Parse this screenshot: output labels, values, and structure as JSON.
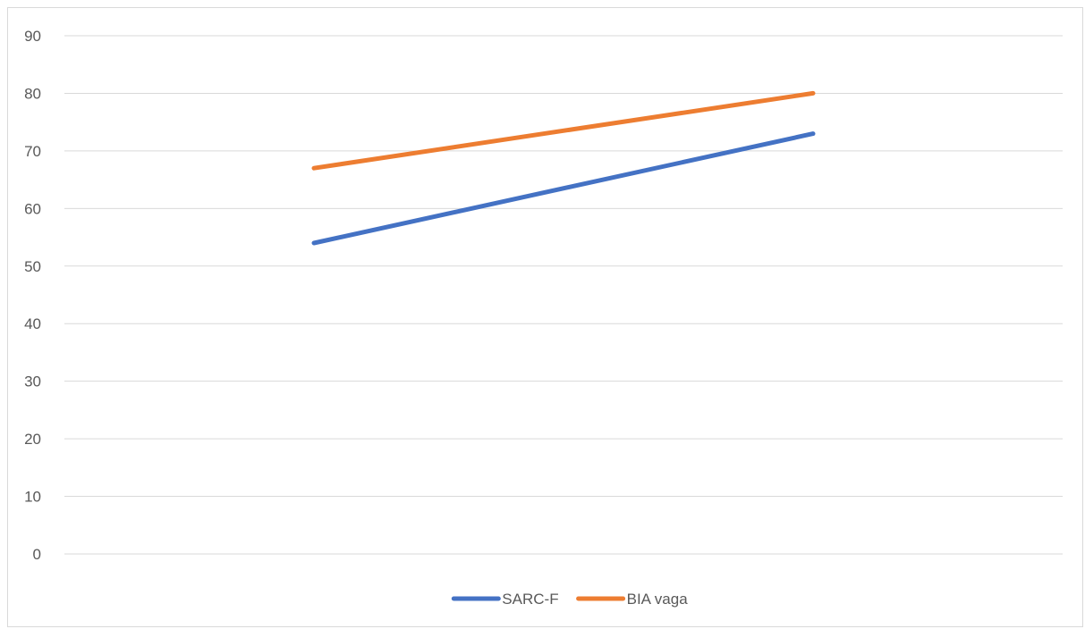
{
  "chart_data": {
    "type": "line",
    "title": "",
    "xlabel": "",
    "ylabel": "",
    "categories": [
      "",
      ""
    ],
    "ylim": [
      0,
      90
    ],
    "yticks": [
      0,
      10,
      20,
      30,
      40,
      50,
      60,
      70,
      80,
      90
    ],
    "grid": true,
    "legend_position": "bottom",
    "series": [
      {
        "name": "SARC-F",
        "values": [
          54,
          73
        ],
        "color": "#4472c4"
      },
      {
        "name": "BIA vaga",
        "values": [
          67,
          80
        ],
        "color": "#ed7d31"
      }
    ]
  }
}
